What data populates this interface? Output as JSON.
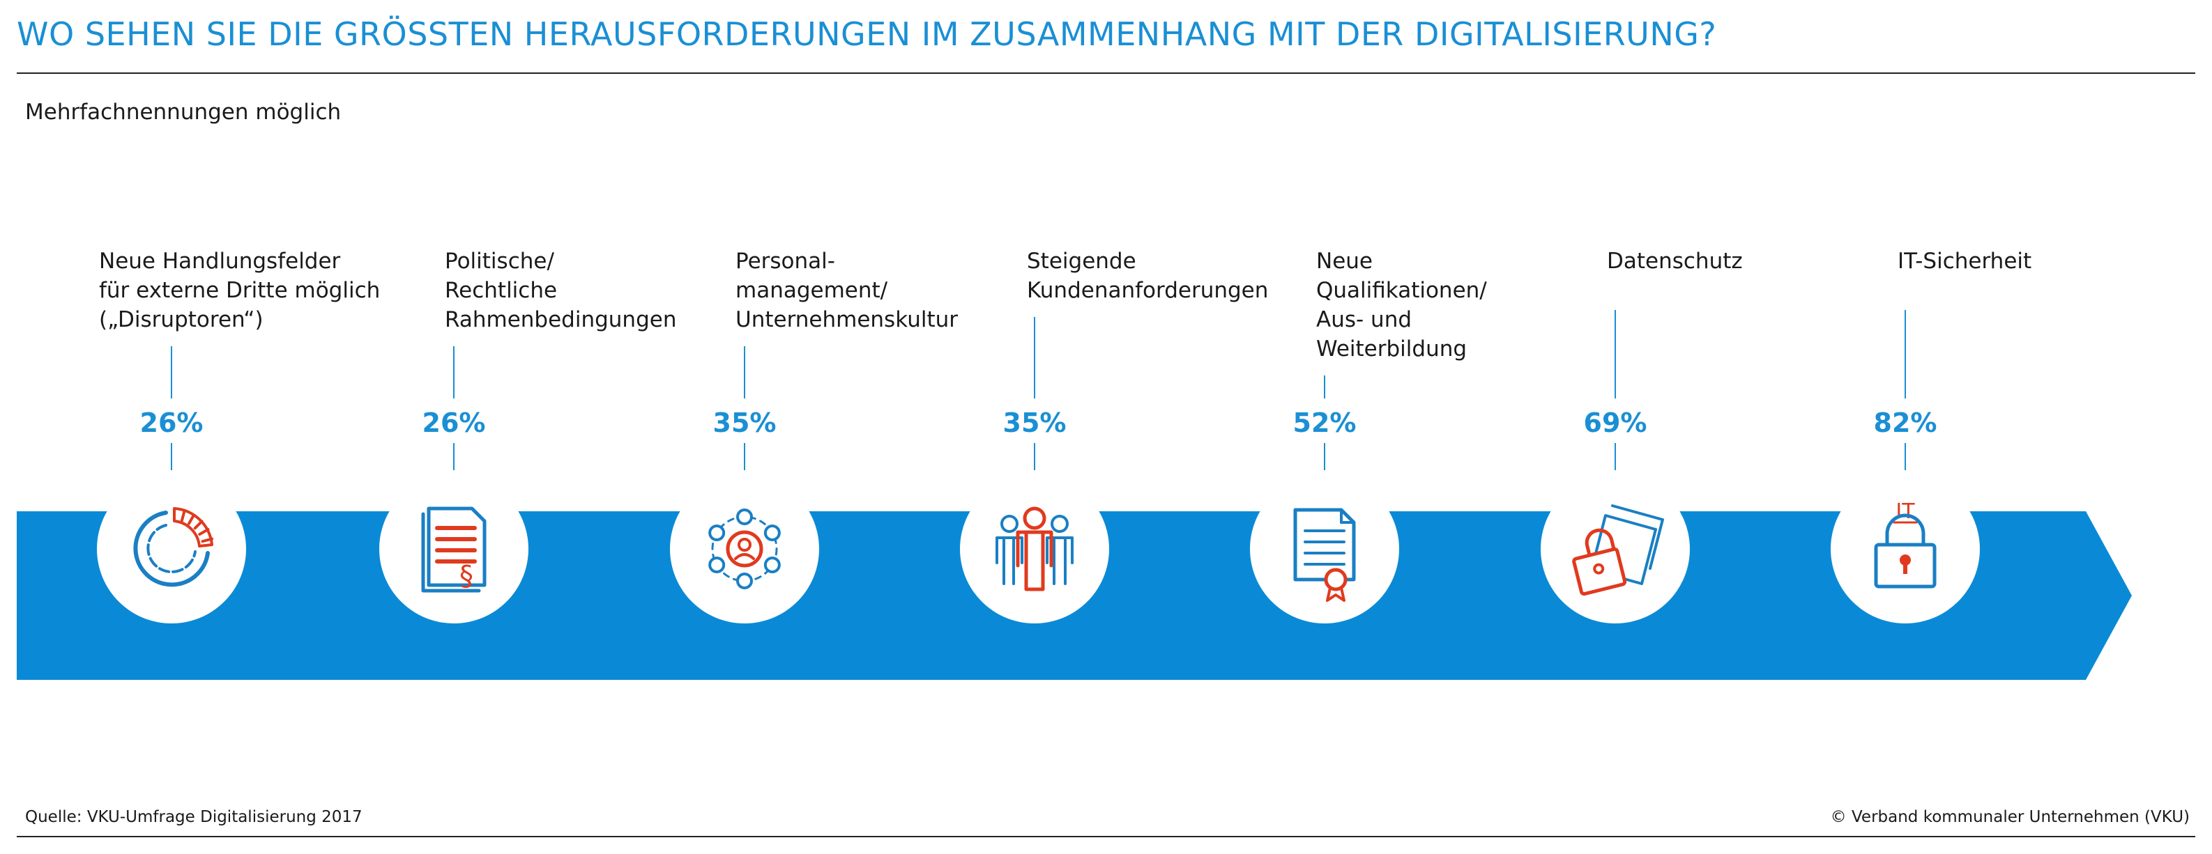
{
  "header": {
    "title": "WO SEHEN SIE DIE GRÖSSTEN HERAUSFORDERUNGEN IM ZUSAMMENHANG MIT DER DIGITALISIERUNG?",
    "subtitle": "Mehrfachnennungen möglich"
  },
  "colors": {
    "accent": "#1a8fd4",
    "band": "#0a8ad6",
    "icon_red": "#e03a1e",
    "icon_blue": "#1a7fc4"
  },
  "chart_data": {
    "type": "bar",
    "title": "WO SEHEN SIE DIE GRÖSSTEN HERAUSFORDERUNGEN IM ZUSAMMENHANG MIT DER DIGITALISIERUNG?",
    "subtitle": "Mehrfachnennungen möglich",
    "unit": "%",
    "categories": [
      {
        "lines": [
          "Neue Handlungsfelder",
          "für externe Dritte möglich",
          "(„Disruptoren“)"
        ],
        "icon": "donut-chart-icon"
      },
      {
        "lines": [
          "Politische/",
          "Rechtliche",
          "Rahmenbedingungen"
        ],
        "icon": "legal-document-icon"
      },
      {
        "lines": [
          "Personal-",
          "management/",
          "Unternehmenskultur"
        ],
        "icon": "people-network-icon"
      },
      {
        "lines": [
          "Steigende",
          "Kundenanforderungen"
        ],
        "icon": "customer-group-icon"
      },
      {
        "lines": [
          "Neue",
          "Qualifikationen/",
          "Aus- und",
          "Weiterbildung"
        ],
        "icon": "certificate-icon"
      },
      {
        "lines": [
          "Datenschutz"
        ],
        "icon": "padlock-documents-icon"
      },
      {
        "lines": [
          "IT-Sicherheit"
        ],
        "icon": "it-lock-icon"
      }
    ],
    "values": [
      26,
      26,
      35,
      35,
      52,
      69,
      82
    ],
    "value_labels": [
      "26%",
      "26%",
      "35%",
      "35%",
      "52%",
      "69%",
      "82%"
    ],
    "icon_badge": "IT"
  },
  "footer": {
    "source": "Quelle: VKU-Umfrage Digitalisierung 2017",
    "copyright": "© Verband kommunaler Unternehmen (VKU)"
  }
}
